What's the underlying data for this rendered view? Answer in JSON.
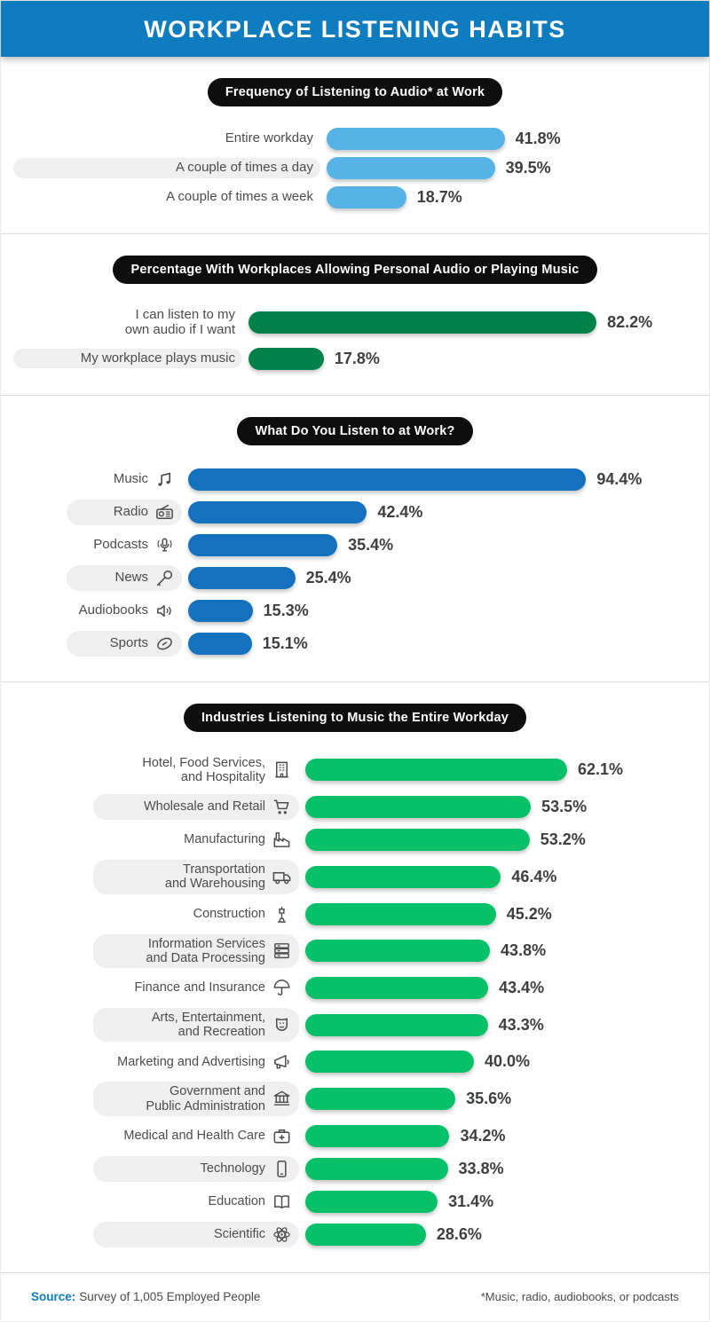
{
  "header": {
    "title": "WORKPLACE LISTENING HABITS"
  },
  "colors": {
    "header_bar": "#0f7cc0",
    "source_accent": "#0f7cc0",
    "shaded_label_bg": "#efefef",
    "title_pill_bg": "#0e0e0e"
  },
  "chart_data": [
    {
      "type": "bar",
      "orientation": "horizontal",
      "title": "Frequency of Listening to Audio* at Work",
      "bar_color": "#57b2e6",
      "unit": "%",
      "xlim": [
        0,
        100
      ],
      "rows": [
        {
          "category": "Entire workday",
          "value": 41.8,
          "display": "41.8%",
          "icon": null
        },
        {
          "category": "A couple of times a day",
          "value": 39.5,
          "display": "39.5%",
          "icon": null
        },
        {
          "category": "A couple of times a week",
          "value": 18.7,
          "display": "18.7%",
          "icon": null
        }
      ]
    },
    {
      "type": "bar",
      "orientation": "horizontal",
      "title": "Percentage With Workplaces Allowing Personal Audio or Playing Music",
      "bar_color": "#00814b",
      "unit": "%",
      "xlim": [
        0,
        100
      ],
      "rows": [
        {
          "category": "I can listen to my\nown audio if I want",
          "value": 82.2,
          "display": "82.2%",
          "icon": null
        },
        {
          "category": "My workplace plays music",
          "value": 17.8,
          "display": "17.8%",
          "icon": null
        }
      ]
    },
    {
      "type": "bar",
      "orientation": "horizontal",
      "title": "What Do You Listen to at Work?",
      "bar_color": "#1371bd",
      "unit": "%",
      "xlim": [
        0,
        100
      ],
      "rows": [
        {
          "category": "Music",
          "value": 94.4,
          "display": "94.4%",
          "icon": "music-notes-icon"
        },
        {
          "category": "Radio",
          "value": 42.4,
          "display": "42.4%",
          "icon": "radio-icon"
        },
        {
          "category": "Podcasts",
          "value": 35.4,
          "display": "35.4%",
          "icon": "podcast-icon"
        },
        {
          "category": "News",
          "value": 25.4,
          "display": "25.4%",
          "icon": "microphone-icon"
        },
        {
          "category": "Audiobooks",
          "value": 15.3,
          "display": "15.3%",
          "icon": "audiobook-speaker-icon"
        },
        {
          "category": "Sports",
          "value": 15.1,
          "display": "15.1%",
          "icon": "football-icon"
        }
      ]
    },
    {
      "type": "bar",
      "orientation": "horizontal",
      "title": "Industries Listening to Music the Entire Workday",
      "bar_color": "#06c167",
      "unit": "%",
      "xlim": [
        0,
        100
      ],
      "rows": [
        {
          "category": "Hotel, Food Services,\nand Hospitality",
          "value": 62.1,
          "display": "62.1%",
          "icon": "hotel-building-icon"
        },
        {
          "category": "Wholesale and Retail",
          "value": 53.5,
          "display": "53.5%",
          "icon": "shopping-cart-icon"
        },
        {
          "category": "Manufacturing",
          "value": 53.2,
          "display": "53.2%",
          "icon": "factory-icon"
        },
        {
          "category": "Transportation\nand Warehousing",
          "value": 46.4,
          "display": "46.4%",
          "icon": "truck-icon"
        },
        {
          "category": "Construction",
          "value": 45.2,
          "display": "45.2%",
          "icon": "jackhammer-icon"
        },
        {
          "category": "Information Services\nand Data Processing",
          "value": 43.8,
          "display": "43.8%",
          "icon": "server-stack-icon"
        },
        {
          "category": "Finance and Insurance",
          "value": 43.4,
          "display": "43.4%",
          "icon": "umbrella-icon"
        },
        {
          "category": "Arts, Entertainment,\nand Recreation",
          "value": 43.3,
          "display": "43.3%",
          "icon": "theater-mask-icon"
        },
        {
          "category": "Marketing and Advertising",
          "value": 40.0,
          "display": "40.0%",
          "icon": "megaphone-icon"
        },
        {
          "category": "Government and\nPublic Administration",
          "value": 35.6,
          "display": "35.6%",
          "icon": "government-building-icon"
        },
        {
          "category": "Medical and Health Care",
          "value": 34.2,
          "display": "34.2%",
          "icon": "medical-briefcase-icon"
        },
        {
          "category": "Technology",
          "value": 33.8,
          "display": "33.8%",
          "icon": "smartphone-icon"
        },
        {
          "category": "Education",
          "value": 31.4,
          "display": "31.4%",
          "icon": "open-book-icon"
        },
        {
          "category": "Scientific",
          "value": 28.6,
          "display": "28.6%",
          "icon": "atom-icon"
        }
      ]
    }
  ],
  "footer": {
    "source_label": "Source:",
    "source_text": "Survey of 1,005 Employed People",
    "footnote": "*Music, radio, audiobooks, or podcasts"
  }
}
